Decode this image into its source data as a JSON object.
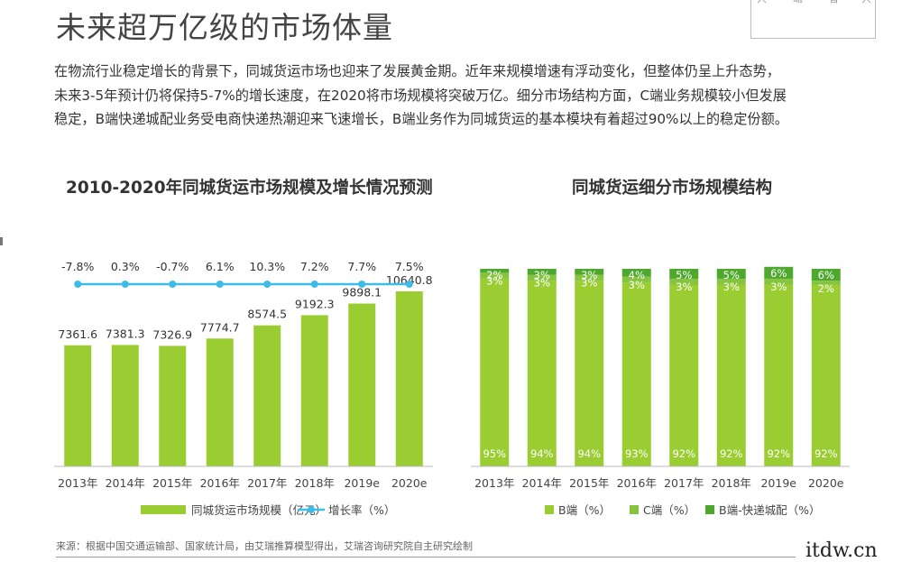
{
  "title": "未来超万亿级的市场体量",
  "corner_text": [
    "只",
    "端",
    "音",
    "只"
  ],
  "intro": [
    "在物流行业稳定增长的背景下，同城货运市场也迎来了发展黄金期。近年来规模增速有浮动变化，但整体仍呈上升态势，",
    "未来3-5年预计仍将保持5-7%的增长速度，在2020将市场规模将突破万亿。细分市场结构方面，C端业务规模较小但发展",
    "稳定，B端快递城配业务受电商快递热潮迎来飞速增长，B端业务作为同城货运的基本模块有着超过90%以上的稳定份额。"
  ],
  "source": "来源：根据中国交通运输部、国家统计局，由艾瑞推算模型得出，艾瑞咨询研究院自主研究绘制",
  "watermark": "itdw.cn",
  "chart_data": [
    {
      "type": "bar",
      "title": "2010-2020年同城货运市场规模及增长情况预测",
      "categories": [
        "2013年",
        "2014年",
        "2015年",
        "2016年",
        "2017年",
        "2018年",
        "2019e",
        "2020e"
      ],
      "series": [
        {
          "name": "同城货运市场规模（亿元）",
          "values": [
            7361.6,
            7381.3,
            7326.9,
            7774.7,
            8574.5,
            9192.3,
            9898.1,
            10640.8
          ],
          "color": "#9ACD32"
        },
        {
          "name": "增长率（%）",
          "type": "line",
          "values": [
            -7.8,
            0.3,
            -0.7,
            6.1,
            10.3,
            7.2,
            7.7,
            7.5
          ],
          "labels": [
            "-7.8%",
            "0.3%",
            "-0.7%",
            "6.1%",
            "10.3%",
            "7.2%",
            "7.7%",
            "7.5%"
          ],
          "color": "#3DBCE8"
        }
      ],
      "legend": "bottom",
      "grid": false
    },
    {
      "type": "bar",
      "stacked": true,
      "title": "同城货运细分市场规模结构",
      "categories": [
        "2013年",
        "2014年",
        "2015年",
        "2016年",
        "2017年",
        "2018年",
        "2019e",
        "2020e"
      ],
      "series": [
        {
          "name": "B端（%）",
          "values": [
            95,
            94,
            94,
            93,
            92,
            92,
            92,
            92
          ],
          "color": "#9ACD32"
        },
        {
          "name": "C端（%）",
          "values": [
            3,
            3,
            3,
            3,
            3,
            3,
            3,
            2
          ],
          "color": "#86C440"
        },
        {
          "name": "B端-快递城配（%）",
          "values": [
            2,
            3,
            3,
            4,
            5,
            5,
            6,
            6
          ],
          "color": "#4EA82E"
        }
      ],
      "legend": "bottom",
      "grid": false
    }
  ]
}
